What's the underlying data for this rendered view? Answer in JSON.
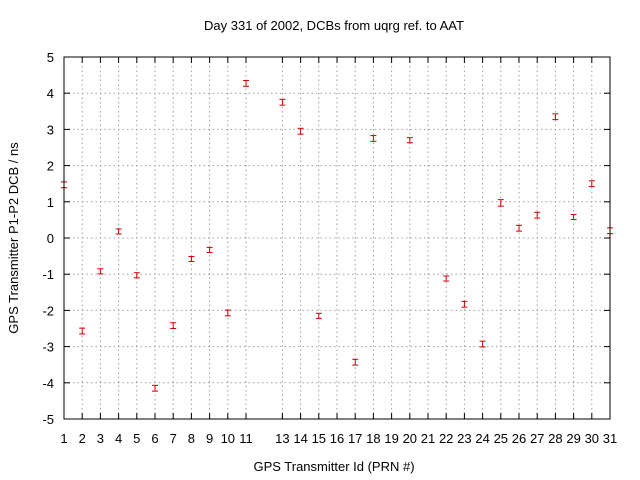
{
  "chart_data": {
    "type": "scatter",
    "title": "Day 331 of 2002, DCBs from uqrg ref. to AAT",
    "xlabel": "GPS Transmitter Id (PRN #)",
    "ylabel": "GPS Transmitter P1-P2 DCB / ns",
    "xlim": [
      1,
      31
    ],
    "ylim": [
      -5,
      5
    ],
    "xticks": [
      1,
      2,
      3,
      4,
      5,
      6,
      7,
      8,
      9,
      10,
      11,
      13,
      14,
      15,
      16,
      17,
      18,
      19,
      20,
      21,
      22,
      23,
      24,
      25,
      26,
      27,
      28,
      29,
      30,
      31
    ],
    "xtick_labels": [
      "1",
      "2",
      "3",
      "4",
      "5",
      "6",
      "7",
      "8",
      "9",
      "10",
      "11",
      "13",
      "14",
      "15",
      "16",
      "17",
      "18",
      "19",
      "20",
      "21",
      "22",
      "23",
      "24",
      "25",
      "26",
      "27",
      "28",
      "29",
      "30",
      "31"
    ],
    "yticks": [
      -5,
      -4,
      -3,
      -2,
      -1,
      0,
      1,
      2,
      3,
      4,
      5
    ],
    "ytick_labels": [
      "-5",
      "-4",
      "-3",
      "-2",
      "-1",
      "0",
      "1",
      "2",
      "3",
      "4",
      "5"
    ],
    "grid": true,
    "marker": "error-bar",
    "color": "#cc0000",
    "points": [
      {
        "x": 1,
        "y": 1.47,
        "err": 0.08
      },
      {
        "x": 2,
        "y": -2.57,
        "err": 0.08
      },
      {
        "x": 3,
        "y": -0.92,
        "err": 0.07
      },
      {
        "x": 4,
        "y": 0.18,
        "err": 0.07
      },
      {
        "x": 5,
        "y": -1.03,
        "err": 0.07
      },
      {
        "x": 6,
        "y": -4.15,
        "err": 0.08
      },
      {
        "x": 7,
        "y": -2.42,
        "err": 0.08
      },
      {
        "x": 8,
        "y": -0.58,
        "err": 0.07
      },
      {
        "x": 9,
        "y": -0.33,
        "err": 0.07
      },
      {
        "x": 10,
        "y": -2.07,
        "err": 0.08
      },
      {
        "x": 11,
        "y": 4.27,
        "err": 0.08
      },
      {
        "x": 13,
        "y": 3.75,
        "err": 0.08
      },
      {
        "x": 14,
        "y": 2.95,
        "err": 0.08
      },
      {
        "x": 15,
        "y": -2.15,
        "err": 0.07
      },
      {
        "x": 17,
        "y": -3.43,
        "err": 0.08
      },
      {
        "x": 18,
        "y": 2.75,
        "err": 0.08
      },
      {
        "x": 20,
        "y": 2.7,
        "err": 0.07
      },
      {
        "x": 22,
        "y": -1.12,
        "err": 0.07
      },
      {
        "x": 23,
        "y": -1.83,
        "err": 0.08
      },
      {
        "x": 24,
        "y": -2.93,
        "err": 0.08
      },
      {
        "x": 25,
        "y": 0.97,
        "err": 0.09
      },
      {
        "x": 26,
        "y": 0.27,
        "err": 0.08
      },
      {
        "x": 27,
        "y": 0.63,
        "err": 0.08
      },
      {
        "x": 28,
        "y": 3.35,
        "err": 0.08
      },
      {
        "x": 29,
        "y": 0.58,
        "err": 0.07
      },
      {
        "x": 30,
        "y": 1.5,
        "err": 0.08
      },
      {
        "x": 31,
        "y": 0.2,
        "err": 0.08
      }
    ]
  }
}
